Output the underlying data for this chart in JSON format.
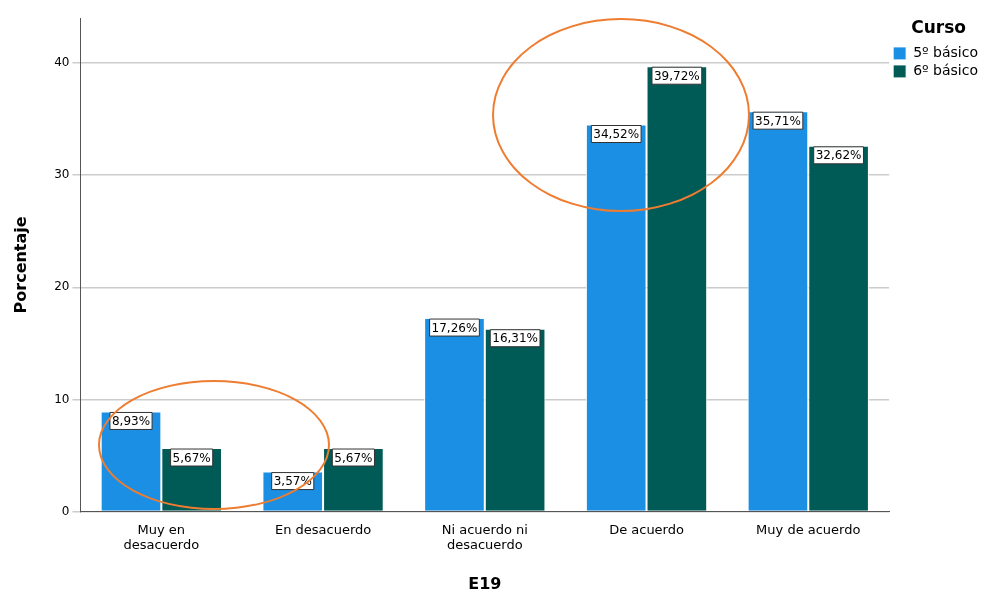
{
  "chart_data": {
    "type": "bar",
    "xlabel": "E19",
    "ylabel": "Porcentaje",
    "legend_title": "Curso",
    "legend": "top right",
    "grid": "y",
    "categories": [
      "Muy en desacuerdo",
      "En desacuerdo",
      "Ni acuerdo ni desacuerdo",
      "De acuerdo",
      "Muy de acuerdo"
    ],
    "series": [
      {
        "name": "5º básico",
        "color": "#1a8fe3",
        "values": [
          8.93,
          3.57,
          17.26,
          34.52,
          35.71
        ],
        "value_labels": [
          "8,93%",
          "3,57%",
          "17,26%",
          "34,52%",
          "35,71%"
        ]
      },
      {
        "name": "6º básico",
        "color": "#005a55",
        "values": [
          5.67,
          5.67,
          16.31,
          39.72,
          32.62
        ],
        "value_labels": [
          "5,67%",
          "5,67%",
          "16,31%",
          "39,72%",
          "32,62%"
        ]
      }
    ],
    "ylim": [
      0,
      44
    ],
    "yticks": [
      0,
      10,
      20,
      30,
      40
    ]
  }
}
